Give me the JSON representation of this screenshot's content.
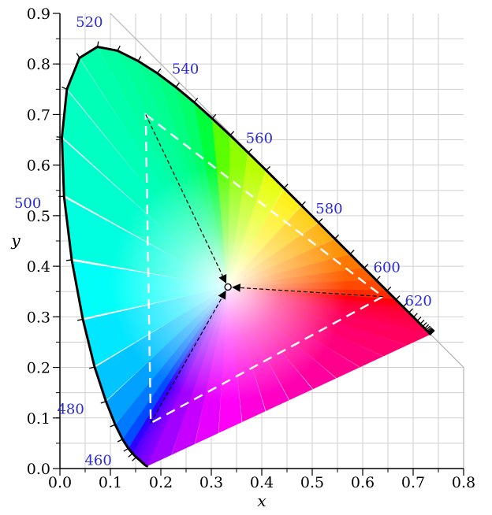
{
  "chart_data": {
    "type": "scatter",
    "title": "",
    "xlabel": "x",
    "ylabel": "y",
    "xlim": [
      0,
      0.8
    ],
    "ylim": [
      0,
      0.9
    ],
    "grid": true,
    "x_ticks": [
      "0.0",
      "0.1",
      "0.2",
      "0.3",
      "0.4",
      "0.5",
      "0.6",
      "0.7",
      "0.8"
    ],
    "y_ticks": [
      "0.0",
      "0.1",
      "0.2",
      "0.3",
      "0.4",
      "0.5",
      "0.6",
      "0.7",
      "0.8",
      "0.9"
    ],
    "spectral_locus": [
      [
        0.1741,
        0.005
      ],
      [
        0.1738,
        0.0049
      ],
      [
        0.1736,
        0.0049
      ],
      [
        0.1733,
        0.0048
      ],
      [
        0.173,
        0.0048
      ],
      [
        0.1726,
        0.0048
      ],
      [
        0.1721,
        0.0048
      ],
      [
        0.1714,
        0.0051
      ],
      [
        0.1703,
        0.0058
      ],
      [
        0.1689,
        0.0069
      ],
      [
        0.1669,
        0.0086
      ],
      [
        0.1644,
        0.0109
      ],
      [
        0.1611,
        0.0138
      ],
      [
        0.1566,
        0.0177
      ],
      [
        0.151,
        0.0227
      ],
      [
        0.144,
        0.0297
      ],
      [
        0.1355,
        0.0399
      ],
      [
        0.1241,
        0.0578
      ],
      [
        0.1096,
        0.0868
      ],
      [
        0.0913,
        0.1327
      ],
      [
        0.0687,
        0.2007
      ],
      [
        0.0454,
        0.295
      ],
      [
        0.0235,
        0.4127
      ],
      [
        0.0082,
        0.5384
      ],
      [
        0.0039,
        0.6548
      ],
      [
        0.0139,
        0.7502
      ],
      [
        0.0389,
        0.812
      ],
      [
        0.0743,
        0.8338
      ],
      [
        0.1142,
        0.8262
      ],
      [
        0.1547,
        0.8059
      ],
      [
        0.1929,
        0.7816
      ],
      [
        0.2296,
        0.7543
      ],
      [
        0.2658,
        0.7243
      ],
      [
        0.3016,
        0.6923
      ],
      [
        0.3373,
        0.6589
      ],
      [
        0.3731,
        0.6245
      ],
      [
        0.4087,
        0.5896
      ],
      [
        0.4441,
        0.5547
      ],
      [
        0.4788,
        0.5202
      ],
      [
        0.5125,
        0.4866
      ],
      [
        0.5448,
        0.4544
      ],
      [
        0.5752,
        0.4242
      ],
      [
        0.6029,
        0.3965
      ],
      [
        0.627,
        0.3725
      ],
      [
        0.6482,
        0.3514
      ],
      [
        0.6658,
        0.334
      ],
      [
        0.6801,
        0.3197
      ],
      [
        0.6915,
        0.3083
      ],
      [
        0.7006,
        0.2993
      ],
      [
        0.7079,
        0.292
      ],
      [
        0.714,
        0.2859
      ],
      [
        0.719,
        0.2809
      ],
      [
        0.723,
        0.277
      ],
      [
        0.726,
        0.274
      ],
      [
        0.7283,
        0.2717
      ],
      [
        0.73,
        0.27
      ],
      [
        0.7311,
        0.2689
      ],
      [
        0.732,
        0.268
      ],
      [
        0.7327,
        0.2673
      ],
      [
        0.7334,
        0.2666
      ],
      [
        0.734,
        0.266
      ],
      [
        0.7344,
        0.2656
      ],
      [
        0.7346,
        0.2654
      ],
      [
        0.7347,
        0.2653
      ]
    ],
    "wavelength_labels": [
      {
        "text": "460",
        "x": 0.144,
        "y": 0.0297,
        "dx": -0.068,
        "dy": -0.013
      },
      {
        "text": "480",
        "x": 0.0913,
        "y": 0.1327,
        "dx": -0.07,
        "dy": -0.015
      },
      {
        "text": "500",
        "x": 0.0082,
        "y": 0.5384,
        "dx": -0.072,
        "dy": -0.014
      },
      {
        "text": "520",
        "x": 0.0743,
        "y": 0.8338,
        "dx": -0.016,
        "dy": 0.049
      },
      {
        "text": "540",
        "x": 0.2296,
        "y": 0.7543,
        "dx": 0.019,
        "dy": 0.036
      },
      {
        "text": "560",
        "x": 0.3731,
        "y": 0.6245,
        "dx": 0.022,
        "dy": 0.029
      },
      {
        "text": "580",
        "x": 0.5125,
        "y": 0.4866,
        "dx": 0.021,
        "dy": 0.027
      },
      {
        "text": "600",
        "x": 0.627,
        "y": 0.3725,
        "dx": 0.021,
        "dy": 0.025
      },
      {
        "text": "620",
        "x": 0.6915,
        "y": 0.3083,
        "dx": 0.019,
        "dy": 0.023
      }
    ],
    "gamut_triangle": [
      [
        0.17,
        0.7
      ],
      [
        0.64,
        0.34
      ],
      [
        0.18,
        0.09
      ]
    ],
    "white_point": [
      0.333,
      0.359
    ],
    "colors": {
      "locus_stroke": "#000000",
      "grid": "#cfcfcf",
      "triangle": "#ffffff",
      "arrows": "#000000",
      "wavelength_label": "#2a2ad6"
    }
  }
}
